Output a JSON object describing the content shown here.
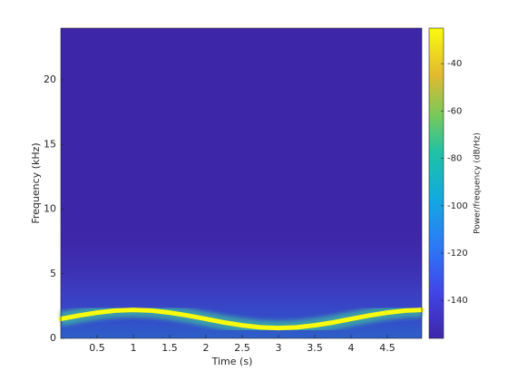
{
  "chart_data": {
    "type": "spectrogram",
    "xlabel": "Time (s)",
    "ylabel": "Frequency (kHz)",
    "colorbar_label": "Power/frequency (dB/Hz)",
    "xlim": [
      0,
      4.975
    ],
    "xticks": [
      0.5,
      1,
      1.5,
      2,
      2.5,
      3,
      3.5,
      4,
      4.5
    ],
    "ylim": [
      0,
      24
    ],
    "yticks": [
      0,
      5,
      10,
      15,
      20
    ],
    "clim": [
      -156,
      -25
    ],
    "cticks": [
      -140,
      -120,
      -100,
      -80,
      -60,
      -40
    ],
    "colormap": "parula",
    "series": [
      {
        "color": "#f9fb0e",
        "x": [
          0,
          0.25,
          0.5,
          0.75,
          1,
          1.25,
          1.5,
          1.75,
          2,
          2.25,
          2.5,
          2.75,
          3,
          3.25,
          3.5,
          3.75,
          4,
          4.25,
          4.5,
          4.75,
          4.975
        ],
        "values": [
          1.5,
          1.77,
          1.99,
          2.15,
          2.2,
          2.15,
          1.99,
          1.77,
          1.5,
          1.23,
          1.01,
          0.85,
          0.8,
          0.85,
          1.01,
          1.23,
          1.5,
          1.77,
          1.99,
          2.15,
          2.2
        ]
      }
    ]
  }
}
